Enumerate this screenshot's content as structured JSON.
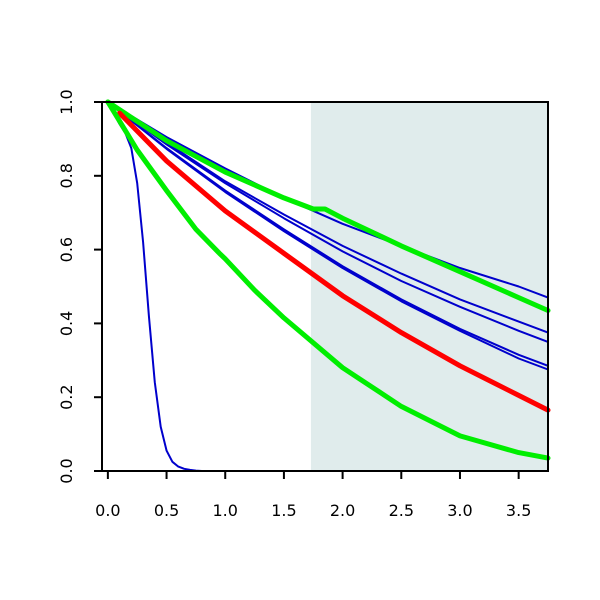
{
  "chart_data": {
    "type": "line",
    "title": "",
    "xlabel": "",
    "ylabel": "",
    "xlim": [
      -0.05,
      3.75
    ],
    "ylim": [
      0,
      1
    ],
    "grid": false,
    "x_ticks": [
      "0.0",
      "0.5",
      "1.0",
      "1.5",
      "2.0",
      "2.5",
      "3.0",
      "3.5"
    ],
    "y_ticks": [
      "0.0",
      "0.2",
      "0.4",
      "0.6",
      "0.8",
      "1.0"
    ],
    "shaded_region": {
      "x_start": 1.73,
      "x_end": 3.75,
      "color": "#e0ecec"
    },
    "series": [
      {
        "color": "#0000cc",
        "style": "thin",
        "x": [
          0,
          0.05,
          0.1,
          0.15,
          0.2,
          0.25,
          0.3,
          0.35,
          0.4,
          0.45,
          0.5,
          0.55,
          0.6,
          0.65,
          0.7,
          0.75,
          0.8,
          0.9,
          1.0,
          1.5,
          2.0,
          2.5,
          3.0,
          3.5,
          3.75
        ],
        "y": [
          1.0,
          0.97,
          0.94,
          0.915,
          0.875,
          0.78,
          0.62,
          0.42,
          0.24,
          0.12,
          0.055,
          0.025,
          0.012,
          0.006,
          0.003,
          0.001,
          0,
          0,
          0,
          0,
          0,
          0,
          0,
          0,
          0
        ]
      },
      {
        "color": "#0000cc",
        "style": "thin",
        "x": [
          0,
          0.5,
          1.0,
          1.5,
          2.0,
          2.5,
          3.0,
          3.5,
          3.75
        ],
        "y": [
          1.0,
          0.905,
          0.82,
          0.74,
          0.67,
          0.61,
          0.55,
          0.5,
          0.47
        ]
      },
      {
        "color": "#0000cc",
        "style": "thin",
        "x": [
          0,
          0.5,
          1.0,
          1.5,
          2.0,
          2.5,
          3.0,
          3.5,
          3.75
        ],
        "y": [
          1.0,
          0.89,
          0.785,
          0.695,
          0.61,
          0.535,
          0.465,
          0.405,
          0.375
        ]
      },
      {
        "color": "#0000cc",
        "style": "thin",
        "x": [
          0,
          0.5,
          1.0,
          1.5,
          2.0,
          2.5,
          3.0,
          3.5,
          3.75
        ],
        "y": [
          1.0,
          0.885,
          0.78,
          0.685,
          0.595,
          0.515,
          0.445,
          0.38,
          0.35
        ]
      },
      {
        "color": "#0000cc",
        "style": "thin",
        "x": [
          0,
          0.5,
          1.0,
          1.5,
          2.0,
          2.5,
          3.0,
          3.5,
          3.75
        ],
        "y": [
          1.0,
          0.875,
          0.76,
          0.655,
          0.555,
          0.465,
          0.385,
          0.315,
          0.285
        ]
      },
      {
        "color": "#0000cc",
        "style": "thin",
        "x": [
          0,
          0.5,
          1.0,
          1.5,
          2.0,
          2.5,
          3.0,
          3.5,
          3.75
        ],
        "y": [
          1.0,
          0.873,
          0.756,
          0.65,
          0.55,
          0.46,
          0.38,
          0.305,
          0.275
        ]
      },
      {
        "color": "#00ee00",
        "style": "thick",
        "x": [
          0,
          0.5,
          1.0,
          1.5,
          1.75,
          1.85,
          2.0,
          2.5,
          3.0,
          3.5,
          3.75
        ],
        "y": [
          1.0,
          0.895,
          0.81,
          0.74,
          0.71,
          0.71,
          0.685,
          0.61,
          0.54,
          0.47,
          0.435
        ]
      },
      {
        "color": "#ff0000",
        "style": "thick",
        "x": [
          0.1,
          0.5,
          1.0,
          1.5,
          2.0,
          2.5,
          3.0,
          3.5,
          3.75
        ],
        "y": [
          0.97,
          0.84,
          0.705,
          0.59,
          0.475,
          0.375,
          0.285,
          0.205,
          0.165
        ]
      },
      {
        "color": "#00ee00",
        "style": "thick",
        "x": [
          0,
          0.25,
          0.5,
          0.75,
          0.95,
          1.0,
          1.25,
          1.5,
          2.0,
          2.5,
          3.0,
          3.5,
          3.75
        ],
        "y": [
          1.0,
          0.87,
          0.76,
          0.655,
          0.59,
          0.575,
          0.49,
          0.415,
          0.28,
          0.175,
          0.095,
          0.05,
          0.035
        ]
      }
    ]
  }
}
